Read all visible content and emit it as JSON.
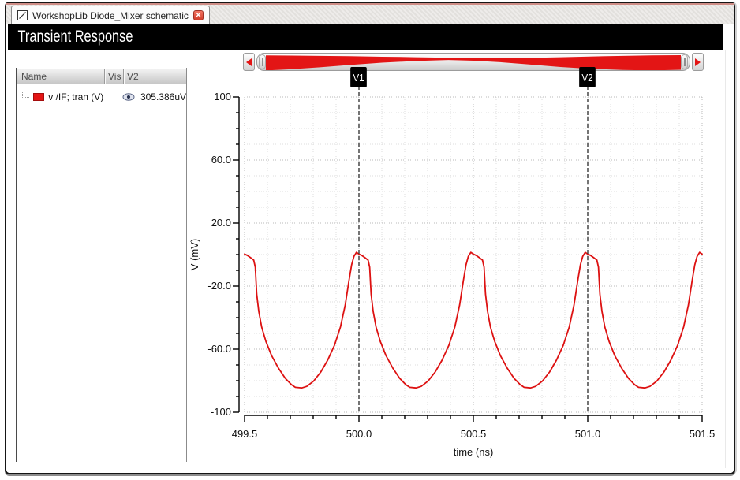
{
  "tab": {
    "title": "WorkshopLib Diode_Mixer schematic",
    "icon": "window-icon",
    "close_icon": "close-x"
  },
  "header": {
    "title": "Transient Response"
  },
  "signal_panel": {
    "columns": [
      "Name",
      "Vis",
      "V2"
    ],
    "rows": [
      {
        "name": "v /IF; tran (V)",
        "swatch_color": "#e31515",
        "visible": true,
        "vis_icon": "eye-icon",
        "v2_value": "305.386uV"
      }
    ]
  },
  "overview_bar": {
    "left_icon": "left-arrow-icon",
    "right_icon": "right-arrow-icon"
  },
  "colors": {
    "accent_red": "#e31515",
    "trace": "#dd1111",
    "titlebar_bg": "#000000",
    "cursor": "#3a3a3a"
  },
  "chart_data": {
    "type": "line",
    "title": "Transient Response",
    "xlabel": "time (ns)",
    "ylabel": "V (mV)",
    "xlim": [
      499.5,
      501.5
    ],
    "ylim": [
      -100,
      100
    ],
    "xticks": [
      499.5,
      500.0,
      500.5,
      501.0,
      501.5
    ],
    "xtick_labels": [
      "499.5",
      "500.0",
      "500.5",
      "501.0",
      "501.5"
    ],
    "yticks": [
      100,
      60,
      20,
      -20,
      -60,
      -100
    ],
    "ytick_labels": [
      "100",
      "60.0",
      "20.0",
      "-20.0",
      "-60.0",
      "-100"
    ],
    "x_minor_step": 0.1,
    "y_minor_step": 10,
    "grid": "dotted",
    "cursors": [
      {
        "label": "V1",
        "t": 500.0
      },
      {
        "label": "V2",
        "t": 501.0
      }
    ],
    "series": [
      {
        "name": "v /IF; tran (V)",
        "color": "#dd1111",
        "points": [
          [
            499.5,
            0.3
          ],
          [
            499.512,
            -0.5
          ],
          [
            499.525,
            -1.8
          ],
          [
            499.54,
            -3.5
          ],
          [
            499.547,
            -8
          ],
          [
            499.553,
            -25
          ],
          [
            499.562,
            -36
          ],
          [
            499.575,
            -46
          ],
          [
            499.593,
            -55
          ],
          [
            499.618,
            -64
          ],
          [
            499.648,
            -72
          ],
          [
            499.678,
            -78.5
          ],
          [
            499.705,
            -82.5
          ],
          [
            499.722,
            -84.2
          ],
          [
            499.75,
            -84.6
          ],
          [
            499.772,
            -83.6
          ],
          [
            499.802,
            -80.2
          ],
          [
            499.833,
            -74.5
          ],
          [
            499.863,
            -67
          ],
          [
            499.893,
            -57.5
          ],
          [
            499.919,
            -46
          ],
          [
            499.94,
            -32
          ],
          [
            499.956,
            -17
          ],
          [
            499.968,
            -6.5
          ],
          [
            499.978,
            -1.2
          ],
          [
            499.989,
            1.4
          ],
          [
            500.0,
            0.3
          ],
          [
            500.012,
            -0.5
          ],
          [
            500.025,
            -1.8
          ],
          [
            500.04,
            -3.5
          ],
          [
            500.047,
            -8
          ],
          [
            500.053,
            -25
          ],
          [
            500.062,
            -36
          ],
          [
            500.075,
            -46
          ],
          [
            500.093,
            -55
          ],
          [
            500.118,
            -64
          ],
          [
            500.148,
            -72
          ],
          [
            500.178,
            -78.5
          ],
          [
            500.205,
            -82.5
          ],
          [
            500.222,
            -84.2
          ],
          [
            500.25,
            -84.6
          ],
          [
            500.272,
            -83.6
          ],
          [
            500.302,
            -80.2
          ],
          [
            500.333,
            -74.5
          ],
          [
            500.363,
            -67
          ],
          [
            500.393,
            -57.5
          ],
          [
            500.419,
            -46
          ],
          [
            500.44,
            -32
          ],
          [
            500.456,
            -17
          ],
          [
            500.468,
            -6.5
          ],
          [
            500.478,
            -1.2
          ],
          [
            500.489,
            1.4
          ],
          [
            500.5,
            0.3
          ],
          [
            500.512,
            -0.5
          ],
          [
            500.525,
            -1.8
          ],
          [
            500.54,
            -3.5
          ],
          [
            500.547,
            -8
          ],
          [
            500.553,
            -25
          ],
          [
            500.562,
            -36
          ],
          [
            500.575,
            -46
          ],
          [
            500.593,
            -55
          ],
          [
            500.618,
            -64
          ],
          [
            500.648,
            -72
          ],
          [
            500.678,
            -78.5
          ],
          [
            500.705,
            -82.5
          ],
          [
            500.722,
            -84.2
          ],
          [
            500.75,
            -84.6
          ],
          [
            500.772,
            -83.6
          ],
          [
            500.802,
            -80.2
          ],
          [
            500.833,
            -74.5
          ],
          [
            500.863,
            -67
          ],
          [
            500.893,
            -57.5
          ],
          [
            500.919,
            -46
          ],
          [
            500.94,
            -32
          ],
          [
            500.956,
            -17
          ],
          [
            500.968,
            -6.5
          ],
          [
            500.978,
            -1.2
          ],
          [
            500.989,
            1.4
          ],
          [
            501.0,
            0.3
          ],
          [
            501.012,
            -0.5
          ],
          [
            501.025,
            -1.8
          ],
          [
            501.04,
            -3.5
          ],
          [
            501.047,
            -8
          ],
          [
            501.053,
            -25
          ],
          [
            501.062,
            -36
          ],
          [
            501.075,
            -46
          ],
          [
            501.093,
            -55
          ],
          [
            501.118,
            -64
          ],
          [
            501.148,
            -72
          ],
          [
            501.178,
            -78.5
          ],
          [
            501.205,
            -82.5
          ],
          [
            501.222,
            -84.2
          ],
          [
            501.25,
            -84.6
          ],
          [
            501.272,
            -83.6
          ],
          [
            501.302,
            -80.2
          ],
          [
            501.333,
            -74.5
          ],
          [
            501.363,
            -67
          ],
          [
            501.393,
            -57.5
          ],
          [
            501.419,
            -46
          ],
          [
            501.44,
            -32
          ],
          [
            501.456,
            -17
          ],
          [
            501.468,
            -6.5
          ],
          [
            501.478,
            -1.2
          ],
          [
            501.489,
            1.4
          ],
          [
            501.5,
            0.3
          ]
        ]
      }
    ],
    "overview_envelope": [
      [
        0,
        0.06,
        0.97
      ],
      [
        0.06,
        0.07,
        0.9
      ],
      [
        0.13,
        0.09,
        0.78
      ],
      [
        0.2,
        0.11,
        0.64
      ],
      [
        0.28,
        0.14,
        0.5
      ],
      [
        0.36,
        0.17,
        0.4
      ],
      [
        0.44,
        0.2,
        0.34
      ],
      [
        0.5,
        0.22,
        0.38
      ],
      [
        0.57,
        0.23,
        0.48
      ],
      [
        0.64,
        0.21,
        0.62
      ],
      [
        0.71,
        0.17,
        0.76
      ],
      [
        0.78,
        0.13,
        0.87
      ],
      [
        0.86,
        0.09,
        0.94
      ],
      [
        0.93,
        0.06,
        0.97
      ],
      [
        1,
        0.05,
        0.93
      ]
    ]
  }
}
